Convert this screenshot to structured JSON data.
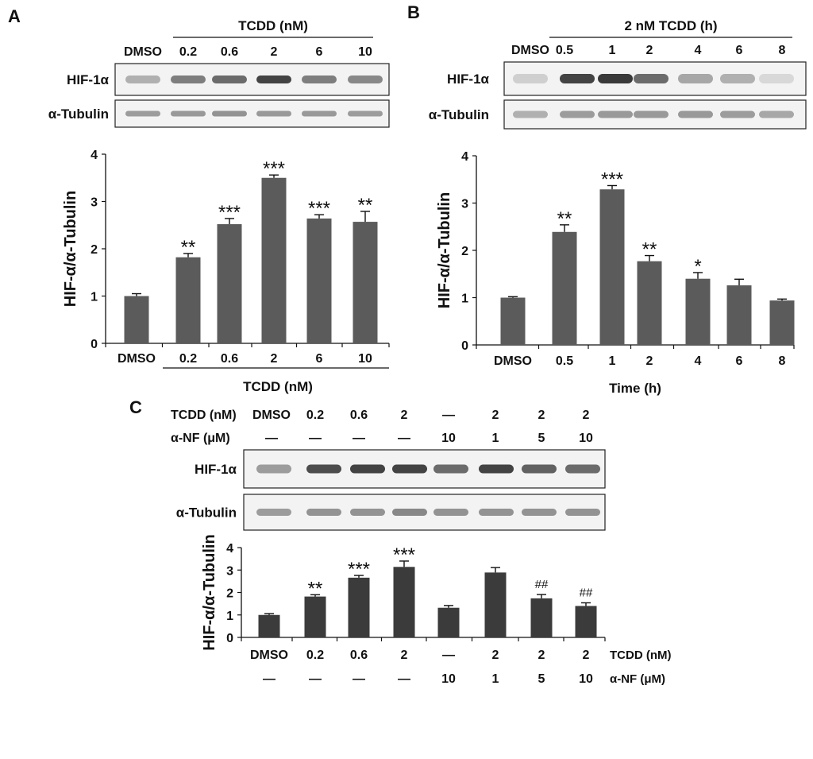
{
  "panels": [
    {
      "id": "A",
      "letter": "A",
      "blot": {
        "header_label": "TCDD (nM)",
        "lane_labels": [
          "DMSO",
          "0.2",
          "0.6",
          "2",
          "6",
          "10"
        ],
        "row_labels": [
          "HIF-1α",
          "α-Tubulin"
        ],
        "band_intensity": {
          "HIF-1α": [
            0.3,
            0.55,
            0.65,
            0.85,
            0.55,
            0.5
          ],
          "α-Tubulin": [
            0.4,
            0.42,
            0.45,
            0.42,
            0.42,
            0.4
          ]
        }
      },
      "chart_data": {
        "type": "bar",
        "categories": [
          "DMSO",
          "0.2",
          "0.6",
          "2",
          "6",
          "10"
        ],
        "values": [
          1.0,
          1.82,
          2.52,
          3.5,
          2.64,
          2.57
        ],
        "errors": [
          0.05,
          0.08,
          0.12,
          0.06,
          0.08,
          0.22
        ],
        "significance": [
          "",
          "**",
          "***",
          "***",
          "***",
          "**"
        ],
        "ylabel": "HIF-α/α-Tubulin",
        "xlabel": "TCDD (nM)",
        "ylim": [
          0,
          4
        ],
        "yticks": [
          "0",
          "1",
          "2",
          "3",
          "4"
        ],
        "bar_color": "#5b5b5b",
        "grid": false
      }
    },
    {
      "id": "B",
      "letter": "B",
      "blot": {
        "header_label": "2 nM TCDD (h)",
        "lane_labels": [
          "DMSO",
          "0.5",
          "1",
          "2",
          "4",
          "6",
          "8"
        ],
        "row_labels": [
          "HIF-1α",
          "α-Tubulin"
        ],
        "band_intensity": {
          "HIF-1α": [
            0.15,
            0.85,
            0.9,
            0.65,
            0.35,
            0.3,
            0.1
          ],
          "α-Tubulin": [
            0.3,
            0.4,
            0.42,
            0.42,
            0.42,
            0.4,
            0.35
          ]
        }
      },
      "chart_data": {
        "type": "bar",
        "categories": [
          "DMSO",
          "0.5",
          "1",
          "2",
          "4",
          "6",
          "8"
        ],
        "values": [
          1.0,
          2.39,
          3.29,
          1.77,
          1.4,
          1.26,
          0.94
        ],
        "errors": [
          0.02,
          0.15,
          0.08,
          0.12,
          0.13,
          0.13,
          0.03
        ],
        "significance": [
          "",
          "**",
          "***",
          "**",
          "*",
          "",
          ""
        ],
        "ylabel": "HIF-α/α-Tubulin",
        "xlabel": "Time (h)",
        "ylim": [
          0,
          4
        ],
        "yticks": [
          "0",
          "1",
          "2",
          "3",
          "4"
        ],
        "bar_color": "#5b5b5b",
        "grid": false
      }
    },
    {
      "id": "C",
      "letter": "C",
      "blot": {
        "treatment_rows": [
          {
            "label": "TCDD (nM)",
            "values": [
              "DMSO",
              "0.2",
              "0.6",
              "2",
              "—",
              "2",
              "2",
              "2"
            ]
          },
          {
            "label": "α-NF (μM)",
            "values": [
              "—",
              "—",
              "—",
              "—",
              "10",
              "1",
              "5",
              "10"
            ]
          }
        ],
        "row_labels": [
          "HIF-1α",
          "α-Tubulin"
        ],
        "band_intensity": {
          "HIF-1α": [
            0.4,
            0.8,
            0.85,
            0.85,
            0.65,
            0.85,
            0.7,
            0.65
          ],
          "α-Tubulin": [
            0.4,
            0.45,
            0.45,
            0.5,
            0.45,
            0.45,
            0.45,
            0.45
          ]
        }
      },
      "chart_data": {
        "type": "bar",
        "categories": [
          "DMSO",
          "0.2",
          "0.6",
          "2",
          "—",
          "2",
          "2",
          "2"
        ],
        "values": [
          1.0,
          1.82,
          2.66,
          3.14,
          1.32,
          2.89,
          1.74,
          1.4
        ],
        "errors": [
          0.06,
          0.08,
          0.1,
          0.26,
          0.1,
          0.22,
          0.17,
          0.14
        ],
        "significance": [
          "",
          "**",
          "***",
          "***",
          "",
          "",
          "##",
          "##"
        ],
        "ylabel": "HIF-α/α-Tubulin",
        "x_rows": [
          {
            "label": "TCDD (nM)",
            "values": [
              "DMSO",
              "0.2",
              "0.6",
              "2",
              "—",
              "2",
              "2",
              "2"
            ]
          },
          {
            "label": "α-NF (μM)",
            "values": [
              "—",
              "—",
              "—",
              "—",
              "10",
              "1",
              "5",
              "10"
            ]
          }
        ],
        "ylim": [
          0,
          4
        ],
        "yticks": [
          "0",
          "1",
          "2",
          "3",
          "4"
        ],
        "bar_color": "#3b3b3b",
        "grid": false
      }
    }
  ]
}
